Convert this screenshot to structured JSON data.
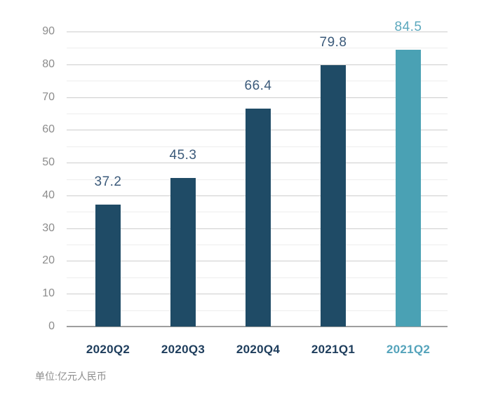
{
  "chart_data": {
    "type": "bar",
    "title": "",
    "categories": [
      "2020Q2",
      "2020Q3",
      "2020Q4",
      "2021Q1",
      "2021Q2"
    ],
    "values": [
      37.2,
      45.3,
      66.4,
      79.8,
      84.5
    ],
    "value_labels": [
      "37.2",
      "45.3",
      "66.4",
      "79.8",
      "84.5"
    ],
    "highlight_index": 4,
    "yticks": [
      0,
      10,
      20,
      30,
      40,
      50,
      60,
      70,
      80,
      90
    ],
    "ylim": [
      0,
      90
    ],
    "ytick_step": 10,
    "minor_gridline_step": 5,
    "grid": "on",
    "legend": "none",
    "xlabel": "",
    "ylabel": "",
    "unit_note": "单位:亿元人民币",
    "colors": {
      "bar_default": "#1f4b66",
      "bar_highlight": "#4aa1b4",
      "value_label_default": "#3b5a7a",
      "value_label_highlight": "#5ca8bd",
      "x_tick_default": "#1e3d5c",
      "x_tick_highlight": "#54a3bb",
      "y_tick": "#8c8c8c",
      "gridline_major": "#cdcdcd",
      "gridline_minor": "#ededed",
      "baseline": "#9e9e9e",
      "background": "#ffffff"
    }
  }
}
